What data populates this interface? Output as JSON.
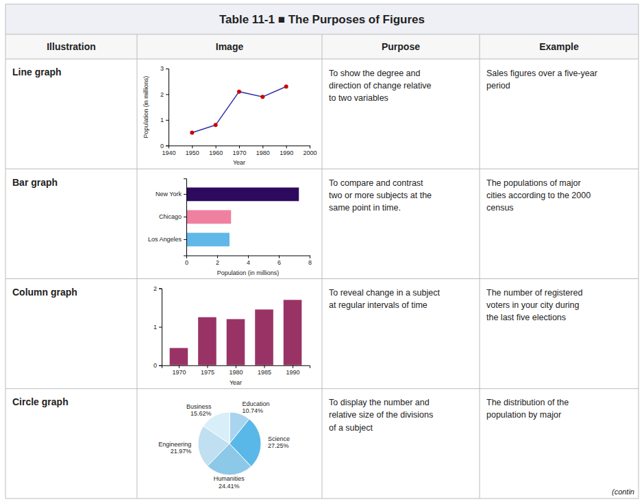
{
  "title": "Table 11-1 ■ The Purposes of Figures",
  "annotations": [
    "Illustration",
    "Image",
    "Purpose",
    "Example",
    "(contin"
  ],
  "chart_data": [
    {
      "type": "line",
      "title": "Line graph",
      "annotations": [
        "To show the degree and\ndirection of change relative\nto two variables",
        "Sales figures over a five-year\nperiod"
      ],
      "x": [
        1950,
        1960,
        1970,
        1980,
        1990
      ],
      "values": [
        0.5,
        0.8,
        2.1,
        1.9,
        2.3
      ],
      "color": "#3333aa",
      "colors": [
        "#cc0000",
        "#cc0000",
        "#cc0000",
        "#cc0000",
        "#cc0000"
      ],
      "marker": "circle",
      "xlabel": "Year",
      "ylabel": "Population (in millions)",
      "xlim": [
        1940,
        2000
      ],
      "ylim": [
        0,
        3
      ],
      "xticks": [
        1940,
        1950,
        1960,
        1970,
        1980,
        1990,
        2000
      ],
      "yticks": [
        0,
        1,
        2,
        3
      ]
    },
    {
      "type": "bar",
      "orientation": "horizontal",
      "title": "Bar graph",
      "annotations": [
        "To compare and contrast\ntwo or more subjects at the\nsame point in time.",
        "The populations of major\ncities according to the 2000\ncensus"
      ],
      "categories": [
        "New York",
        "Chicago",
        "Los Angeles"
      ],
      "values": [
        7.3,
        2.9,
        2.8
      ],
      "colors": [
        "#2d0a5e",
        "#f080a0",
        "#60b8e8"
      ],
      "xlabel": "Population (in millions)",
      "xlim": [
        0,
        8
      ],
      "xticks": [
        0,
        2,
        4,
        6,
        8
      ]
    },
    {
      "type": "bar",
      "title": "Column graph",
      "annotations": [
        "To reveal change in a subject\nat regular intervals of time",
        "The number of registered\nvoters in your city during\nthe last five elections"
      ],
      "x": [
        1970,
        1975,
        1980,
        1985,
        1990
      ],
      "values": [
        0.45,
        1.25,
        1.2,
        1.45,
        1.7
      ],
      "color": "#993366",
      "xlabel": "Year",
      "xlim": [
        1967,
        1993
      ],
      "ylim": [
        0,
        2
      ],
      "xticks": [
        1970,
        1975,
        1980,
        1985,
        1990
      ],
      "yticks": [
        0,
        1,
        2
      ]
    },
    {
      "type": "pie",
      "title": "Circle graph",
      "annotations": [
        "To display the number and\nrelative size of the divisions\nof a subject",
        "The distribution of the\npopulation by major"
      ],
      "categories": [
        "Education",
        "Science",
        "Humanities",
        "Engineering",
        "Business"
      ],
      "values": [
        10.74,
        27.25,
        24.41,
        21.97,
        15.62
      ],
      "value_labels": [
        "10.74%",
        "27.25%",
        "24.41%",
        "21.97%",
        "15.62%"
      ],
      "data_labels": true,
      "colors": [
        "#a8d4f0",
        "#5ab8e8",
        "#8cc8e8",
        "#c0dff0",
        "#d8eef8"
      ]
    }
  ]
}
